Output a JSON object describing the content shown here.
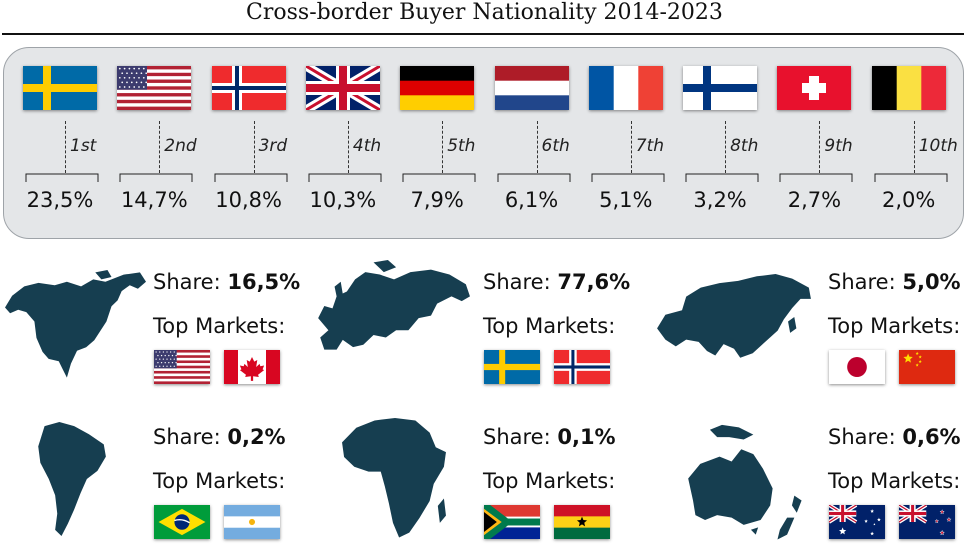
{
  "title": "Cross-border Buyer Nationality 2014-2023",
  "chart_data": {
    "type": "table",
    "title": "Cross-border Buyer Nationality 2014-2023",
    "ranking": [
      {
        "rank": "1st",
        "country": "Sweden",
        "flag": "sweden",
        "value": 23.5,
        "label": "23,5%"
      },
      {
        "rank": "2nd",
        "country": "United States",
        "flag": "usa",
        "value": 14.7,
        "label": "14,7%"
      },
      {
        "rank": "3rd",
        "country": "Norway",
        "flag": "norway",
        "value": 10.8,
        "label": "10,8%"
      },
      {
        "rank": "4th",
        "country": "United Kingdom",
        "flag": "uk",
        "value": 10.3,
        "label": "10,3%"
      },
      {
        "rank": "5th",
        "country": "Germany",
        "flag": "germany",
        "value": 7.9,
        "label": "7,9%"
      },
      {
        "rank": "6th",
        "country": "Netherlands",
        "flag": "netherlands",
        "value": 6.1,
        "label": "6,1%"
      },
      {
        "rank": "7th",
        "country": "France",
        "flag": "france",
        "value": 5.1,
        "label": "5,1%"
      },
      {
        "rank": "8th",
        "country": "Finland",
        "flag": "finland",
        "value": 3.2,
        "label": "3,2%"
      },
      {
        "rank": "9th",
        "country": "Switzerland",
        "flag": "switzerland",
        "value": 2.7,
        "label": "2,7%"
      },
      {
        "rank": "10th",
        "country": "Belgium",
        "flag": "belgium",
        "value": 2.0,
        "label": "2,0%"
      }
    ],
    "regions": [
      {
        "region": "North America",
        "map": "north-america-map",
        "share_prefix": "Share: ",
        "value": 16.5,
        "share": "16,5%",
        "top_markets_label": "Top Markets:",
        "top_markets": [
          "usa",
          "canada"
        ]
      },
      {
        "region": "Europe",
        "map": "europe-map",
        "share_prefix": "Share: ",
        "value": 77.6,
        "share": "77,6%",
        "top_markets_label": "Top Markets:",
        "top_markets": [
          "sweden",
          "norway"
        ]
      },
      {
        "region": "Asia",
        "map": "asia-map",
        "share_prefix": "Share: ",
        "value": 5.0,
        "share": "5,0%",
        "top_markets_label": "Top Markets:",
        "top_markets": [
          "japan",
          "china"
        ]
      },
      {
        "region": "South America",
        "map": "south-america-map",
        "share_prefix": "Share: ",
        "value": 0.2,
        "share": "0,2%",
        "top_markets_label": "Top Markets:",
        "top_markets": [
          "brazil",
          "argentina"
        ]
      },
      {
        "region": "Africa",
        "map": "africa-map",
        "share_prefix": "Share: ",
        "value": 0.1,
        "share": "0,1%",
        "top_markets_label": "Top Markets:",
        "top_markets": [
          "south-africa",
          "ghana"
        ]
      },
      {
        "region": "Oceania",
        "map": "oceania-map",
        "share_prefix": "Share: ",
        "value": 0.6,
        "share": "0,6%",
        "top_markets_label": "Top Markets:",
        "top_markets": [
          "australia",
          "new-zealand"
        ]
      }
    ]
  },
  "colors": {
    "map": "#163e50",
    "panel": "#e4e6e8",
    "panel_border": "#9ea3a8"
  }
}
